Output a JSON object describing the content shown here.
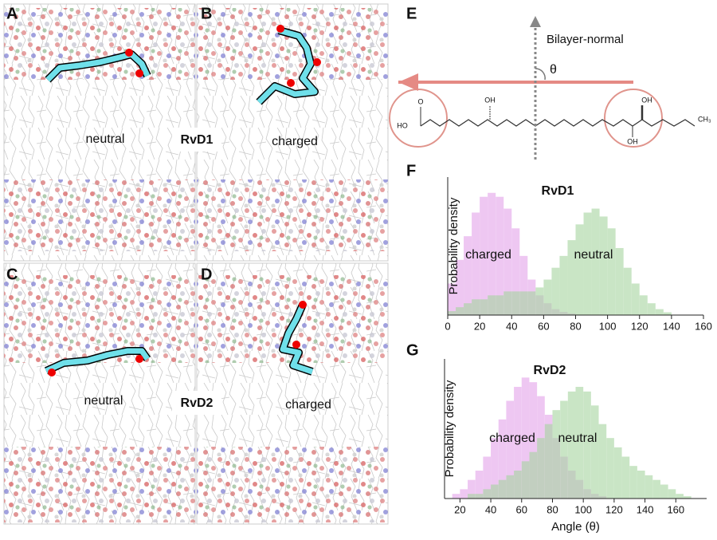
{
  "snapshots": [
    {
      "label": "A",
      "state": "neutral"
    },
    {
      "label": "B",
      "state": "charged"
    },
    {
      "label": "C",
      "state": "neutral"
    },
    {
      "label": "D",
      "state": "charged"
    }
  ],
  "molecule_labels": [
    "RvD1",
    "RvD2"
  ],
  "structure": {
    "label": "E",
    "axis_label": "Bilayer-normal",
    "angle": "θ",
    "atoms": [
      "O",
      "HO",
      "OH",
      "OH",
      "OH",
      "CH₃"
    ]
  },
  "chart_data": [
    {
      "type": "histogram",
      "label": "F",
      "title": "RvD1",
      "y_label": "Probability density",
      "bins": [
        0,
        5,
        10,
        15,
        20,
        25,
        30,
        35,
        40,
        45,
        50,
        55,
        60,
        65,
        70,
        75,
        80,
        85,
        90,
        95,
        100,
        105,
        110,
        115,
        120,
        125,
        130,
        135,
        140
      ],
      "series": [
        {
          "name": "charged",
          "color": "#e4a3ea",
          "values": [
            0.008,
            0.014,
            0.02,
            0.026,
            0.03,
            0.031,
            0.03,
            0.027,
            0.022,
            0.015,
            0.009,
            0.005,
            0.003,
            0.0015,
            0.0008,
            0.0004,
            0,
            0,
            0,
            0,
            0,
            0,
            0,
            0,
            0,
            0,
            0,
            0
          ]
        },
        {
          "name": "neutral",
          "color": "#a6d5a0",
          "values": [
            0.001,
            0.002,
            0.003,
            0.004,
            0.004,
            0.005,
            0.005,
            0.006,
            0.006,
            0.006,
            0.006,
            0.007,
            0.009,
            0.012,
            0.015,
            0.019,
            0.023,
            0.026,
            0.027,
            0.025,
            0.022,
            0.017,
            0.012,
            0.008,
            0.005,
            0.003,
            0.0015,
            0.0007
          ]
        }
      ],
      "xlim": [
        0,
        160
      ],
      "xticks": [
        0,
        20,
        40,
        60,
        80,
        100,
        120,
        140,
        160
      ],
      "ylim": [
        0,
        0.035
      ]
    },
    {
      "type": "histogram",
      "label": "G",
      "title": "RvD2",
      "y_label": "Probability density",
      "x_label": "Angle (θ)",
      "bins": [
        15,
        20,
        25,
        30,
        35,
        40,
        45,
        50,
        55,
        60,
        65,
        70,
        75,
        80,
        85,
        90,
        95,
        100,
        105,
        110,
        115,
        120,
        125,
        130,
        135,
        140,
        145,
        150,
        155,
        160,
        165,
        170,
        175
      ],
      "series": [
        {
          "name": "charged",
          "color": "#e4a3ea",
          "values": [
            0.001,
            0.002,
            0.004,
            0.006,
            0.009,
            0.013,
            0.017,
            0.021,
            0.024,
            0.026,
            0.025,
            0.022,
            0.018,
            0.013,
            0.009,
            0.006,
            0.004,
            0.002,
            0.001,
            0.0005,
            0,
            0,
            0,
            0,
            0,
            0,
            0,
            0,
            0,
            0,
            0,
            0
          ]
        },
        {
          "name": "neutral",
          "color": "#a6d5a0",
          "values": [
            0,
            0,
            0.001,
            0.001,
            0.002,
            0.003,
            0.004,
            0.005,
            0.006,
            0.008,
            0.01,
            0.013,
            0.016,
            0.019,
            0.021,
            0.023,
            0.024,
            0.023,
            0.02,
            0.016,
            0.013,
            0.011,
            0.009,
            0.007,
            0.006,
            0.005,
            0.004,
            0.003,
            0.002,
            0.001,
            0.0005,
            0
          ]
        }
      ],
      "xlim": [
        10,
        180
      ],
      "xticks": [
        20,
        40,
        60,
        80,
        100,
        120,
        140,
        160
      ],
      "ylim": [
        0,
        0.03
      ]
    }
  ]
}
